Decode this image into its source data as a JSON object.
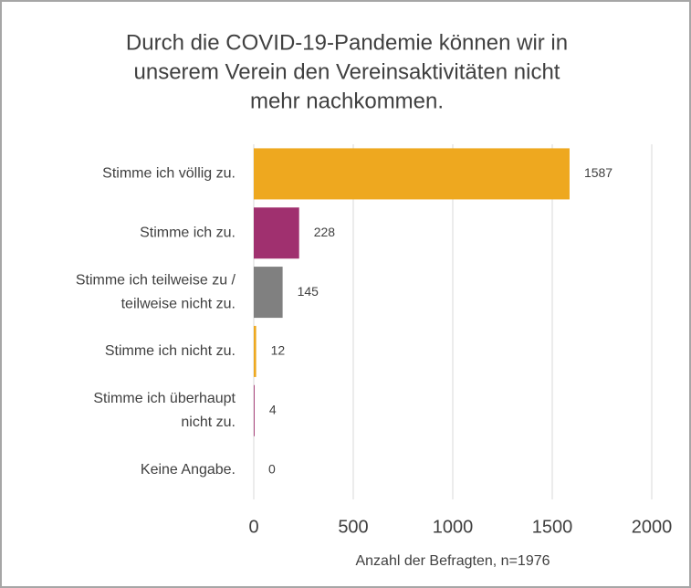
{
  "chart_data": {
    "type": "bar",
    "orientation": "horizontal",
    "title": [
      "Durch die COVID-19-Pandemie können wir in",
      "unserem Verein den Vereinsaktivitäten nicht",
      "mehr nachkommen."
    ],
    "categories": [
      [
        "Stimme ich völlig zu."
      ],
      [
        "Stimme ich zu."
      ],
      [
        "Stimme ich teilweise zu /",
        "teilweise nicht zu."
      ],
      [
        "Stimme ich nicht zu."
      ],
      [
        "Stimme ich überhaupt",
        "nicht zu."
      ],
      [
        "Keine Angabe."
      ]
    ],
    "values": [
      1587,
      228,
      145,
      12,
      4,
      0
    ],
    "colors": [
      "#eea81f",
      "#a0306f",
      "#808080",
      "#eea81f",
      "#a0306f",
      "#808080"
    ],
    "xlim": [
      0,
      2000
    ],
    "xticks": [
      0,
      500,
      1000,
      1500,
      2000
    ],
    "xlabel": "Anzahl der Befragten, n=1976",
    "grid": true
  }
}
